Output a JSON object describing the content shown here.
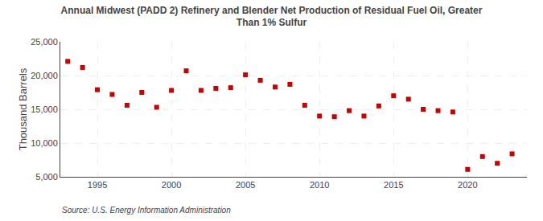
{
  "chart_data": {
    "type": "scatter",
    "title": "Annual Midwest (PADD 2) Refinery and Blender Net Production of Residual Fuel Oil, Greater\nThan 1% Sulfur",
    "ylabel": "Thousand Barrels",
    "annotations": [
      "Source: U.S. Energy Information Administration"
    ],
    "color": "#cc0000",
    "marker": "square",
    "grid": true,
    "x": [
      1993,
      1994,
      1995,
      1996,
      1997,
      1998,
      1999,
      2000,
      2001,
      2002,
      2003,
      2004,
      2005,
      2006,
      2007,
      2008,
      2009,
      2010,
      2011,
      2012,
      2013,
      2014,
      2015,
      2016,
      2017,
      2018,
      2019,
      2020,
      2021,
      2022,
      2023
    ],
    "values": [
      22100,
      21200,
      17900,
      17200,
      15600,
      17500,
      15300,
      17800,
      20700,
      17800,
      18100,
      18200,
      20100,
      19300,
      18300,
      18700,
      15600,
      14000,
      13900,
      14800,
      14000,
      15500,
      17000,
      16500,
      15000,
      14800,
      14600,
      6100,
      8000,
      7000,
      8400
    ],
    "xlim": [
      1992.5,
      2024
    ],
    "xticks": [
      1995,
      2000,
      2005,
      2010,
      2015,
      2020
    ],
    "ylim": [
      5000,
      25000
    ],
    "yticks": [
      {
        "value": 5000,
        "label": "5,000"
      },
      {
        "value": 10000,
        "label": "10,000"
      },
      {
        "value": 15000,
        "label": "15,000"
      },
      {
        "value": 20000,
        "label": "20,000"
      },
      {
        "value": 25000,
        "label": "25,000"
      }
    ]
  }
}
